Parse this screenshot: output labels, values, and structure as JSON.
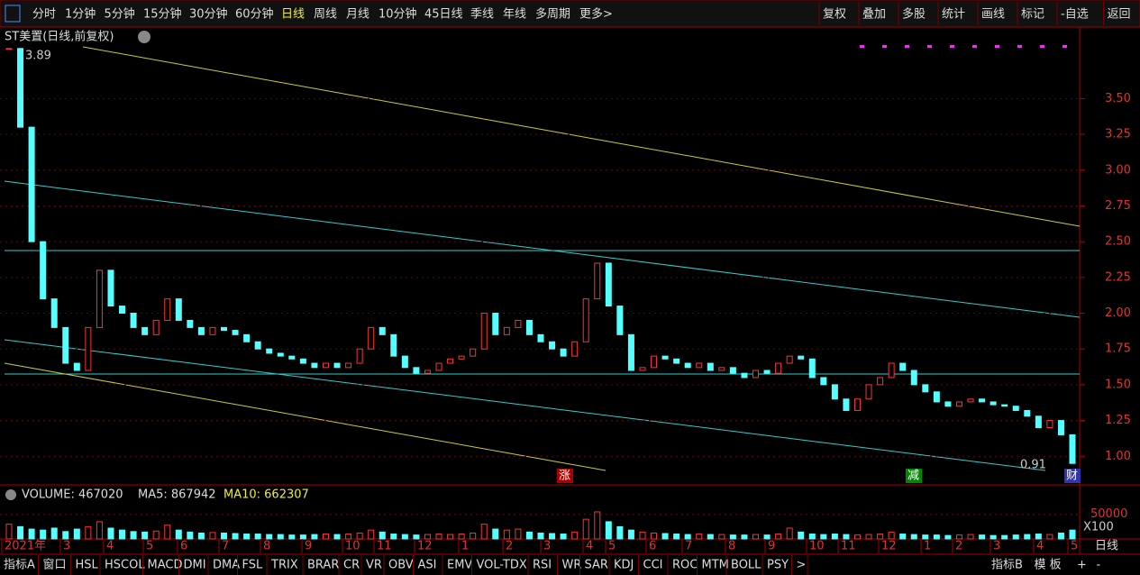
{
  "toolbar": {
    "items": [
      "分时",
      "1分钟",
      "5分钟",
      "15分钟",
      "30分钟",
      "60分钟",
      "日线",
      "周线",
      "月线",
      "10分钟",
      "45日线",
      "季线",
      "年线",
      "多周期",
      "更多>"
    ],
    "right": [
      "复权",
      "叠加",
      "多股",
      "统计",
      "画线",
      "标记",
      "-自选",
      "返回"
    ]
  },
  "price_chart": {
    "title": "ST美置(日线,前复权)",
    "high_label": "3.89",
    "low_label": "0.91",
    "markers": [
      "涨",
      "减",
      "财"
    ],
    "ylim": [
      0.8,
      4.0
    ],
    "yticks": [
      {
        "value": 1,
        "label": "1.00"
      },
      {
        "value": 1.25,
        "label": "1.25"
      },
      {
        "value": 1.5,
        "label": "1.50"
      },
      {
        "value": 1.75,
        "label": "1.75"
      },
      {
        "value": 2,
        "label": "2.00"
      },
      {
        "value": 2.25,
        "label": "2.25"
      },
      {
        "value": 2.5,
        "label": "2.50"
      },
      {
        "value": 2.75,
        "label": "2.75"
      },
      {
        "value": 3,
        "label": "3.00"
      },
      {
        "value": 3.25,
        "label": "3.25"
      },
      {
        "value": 3.5,
        "label": "3.50"
      }
    ],
    "values": [
      3.85,
      3.3,
      2.5,
      2.1,
      1.9,
      1.65,
      1.6,
      1.9,
      2.3,
      2.05,
      2.0,
      1.9,
      1.85,
      1.95,
      2.1,
      1.95,
      1.9,
      1.85,
      1.9,
      1.88,
      1.85,
      1.8,
      1.75,
      1.72,
      1.7,
      1.68,
      1.65,
      1.62,
      1.65,
      1.62,
      1.65,
      1.75,
      1.9,
      1.85,
      1.7,
      1.62,
      1.58,
      1.6,
      1.65,
      1.68,
      1.7,
      1.75,
      2.0,
      1.85,
      1.9,
      1.95,
      1.85,
      1.8,
      1.75,
      1.7,
      1.8,
      2.1,
      2.35,
      2.05,
      1.85,
      1.6,
      1.62,
      1.7,
      1.68,
      1.65,
      1.62,
      1.65,
      1.6,
      1.62,
      1.58,
      1.55,
      1.6,
      1.58,
      1.65,
      1.7,
      1.68,
      1.55,
      1.5,
      1.4,
      1.32,
      1.4,
      1.5,
      1.55,
      1.65,
      1.6,
      1.5,
      1.45,
      1.38,
      1.35,
      1.38,
      1.4,
      1.38,
      1.36,
      1.35,
      1.32,
      1.28,
      1.2,
      1.25,
      1.15,
      0.95
    ]
  },
  "volume_chart": {
    "label": "VOLUME: 467020",
    "ma5": "MA5: 867942",
    "ma10": "MA10: 662307",
    "unit": "X100",
    "ylim": [
      0,
      100000
    ],
    "yticks": [
      50000
    ],
    "values": [
      30000,
      25000,
      20000,
      18000,
      22000,
      15000,
      20000,
      25000,
      35000,
      22000,
      18000,
      15000,
      14000,
      16000,
      28000,
      18000,
      14000,
      12000,
      13000,
      12000,
      11000,
      10000,
      10000,
      9000,
      9000,
      8000,
      8000,
      9000,
      10000,
      9000,
      10000,
      12000,
      18000,
      14000,
      10000,
      9000,
      8000,
      9000,
      10000,
      9000,
      10000,
      12000,
      30000,
      20000,
      18000,
      20000,
      14000,
      12000,
      11000,
      10000,
      14000,
      40000,
      55000,
      35000,
      25000,
      18000,
      14000,
      12000,
      11000,
      10000,
      9000,
      10000,
      9000,
      9000,
      8000,
      8000,
      9000,
      8000,
      10000,
      22000,
      14000,
      10000,
      9000,
      10000,
      9000,
      8000,
      9000,
      10000,
      14000,
      10000,
      9000,
      8000,
      8000,
      7000,
      8000,
      9000,
      8000,
      7000,
      7000,
      8000,
      9000,
      10000,
      9000,
      12000,
      18000
    ]
  },
  "x_axis": {
    "labels": [
      "2021年",
      "3",
      "4",
      "5",
      "6",
      "7",
      "8",
      "9",
      "10",
      "11",
      "12",
      "1",
      "2",
      "3",
      "4",
      "5",
      "6",
      "7",
      "8",
      "9",
      "10",
      "11",
      "12",
      "1",
      "2",
      "3",
      "4",
      "5"
    ],
    "period": "日线"
  },
  "bottom_tabs": {
    "items": [
      "指标A",
      "窗口",
      "HSL",
      "HSCOL",
      "MACD",
      "DMI",
      "DMA",
      "FSL",
      "TRIX",
      "BRAR",
      "CR",
      "VR",
      "OBV",
      "ASI",
      "EMV",
      "VOL-TDX",
      "RSI",
      "WR",
      "SAR",
      "KDJ",
      "CCI",
      "ROC",
      "MTM",
      "BOLL",
      "PSY",
      ">"
    ],
    "right": [
      "指标B",
      "模 板",
      "+",
      "-"
    ]
  }
}
